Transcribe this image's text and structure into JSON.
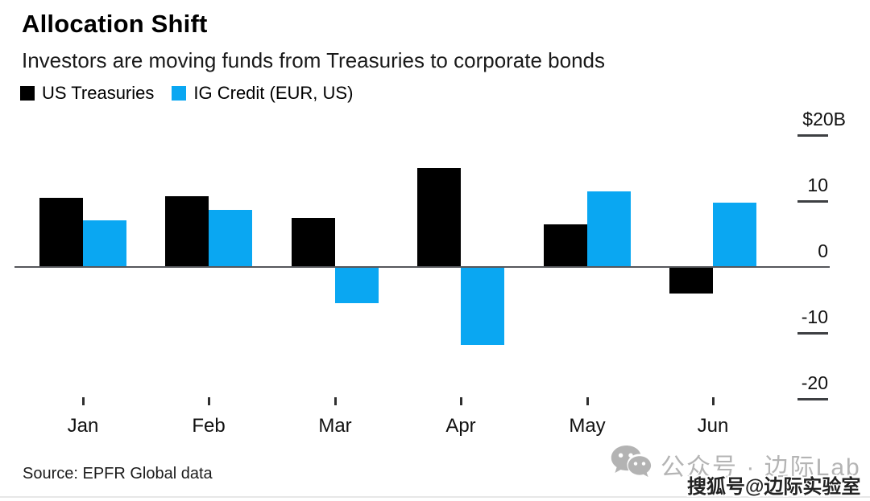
{
  "header": {
    "title": "Allocation Shift",
    "subtitle": "Investors are moving funds from Treasuries to corporate bonds"
  },
  "legend": [
    {
      "label": "US Treasuries",
      "color": "#000000"
    },
    {
      "label": "IG Credit (EUR, US)",
      "color": "#0aa7f2"
    }
  ],
  "chart_data": {
    "type": "bar",
    "title": "Allocation Shift",
    "subtitle": "Investors are moving funds from Treasuries to corporate bonds",
    "unit": "$B",
    "categories": [
      "Jan",
      "Feb",
      "Mar",
      "Apr",
      "May",
      "Jun"
    ],
    "series": [
      {
        "name": "US Treasuries",
        "color": "#000000",
        "values": [
          10.5,
          10.7,
          7.5,
          15.0,
          6.5,
          -4.0
        ]
      },
      {
        "name": "IG Credit (EUR, US)",
        "color": "#0aa7f2",
        "values": [
          7.1,
          8.7,
          -5.5,
          -11.8,
          11.5,
          9.8
        ]
      }
    ],
    "y_ticks": [
      {
        "value": 20,
        "label": "$20B"
      },
      {
        "value": 10,
        "label": "10"
      },
      {
        "value": 0,
        "label": "0"
      },
      {
        "value": -10,
        "label": "-10"
      },
      {
        "value": -20,
        "label": "-20"
      }
    ],
    "ylim": [
      -20,
      20
    ],
    "grid": false,
    "axis_side": "right",
    "legend_position": "top-left"
  },
  "footer": {
    "source": "Source: EPFR Global data"
  },
  "watermarks": {
    "wechat_text": "公众号 · 边际Lab",
    "sohu_text": "搜狐号@边际实验室",
    "wechat_color": "#b4b4b4"
  }
}
